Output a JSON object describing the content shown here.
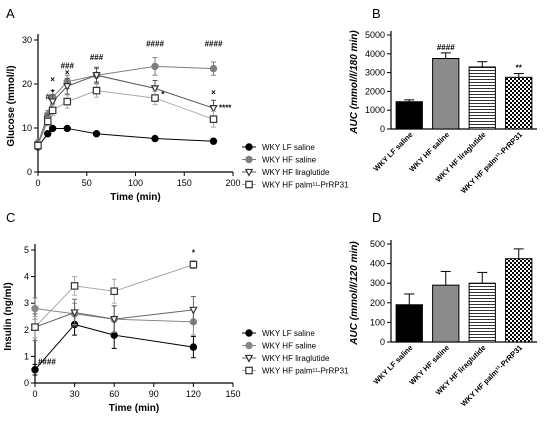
{
  "chart_data": [
    {
      "panel": "A",
      "type": "line",
      "xlabel": "Time (min)",
      "ylabel": "Glucose (mmol/l)",
      "xlim": [
        0,
        200
      ],
      "ylim": [
        0,
        30
      ],
      "xticks": [
        0,
        50,
        100,
        150,
        200
      ],
      "yticks": [
        0,
        10,
        20,
        30
      ],
      "x": [
        0,
        10,
        15,
        30,
        60,
        120,
        180
      ],
      "series": [
        {
          "name": "WKY LF saline",
          "marker": "circle",
          "color": "#000000",
          "values": [
            5.7,
            8.7,
            9.9,
            9.9,
            8.7,
            7.6,
            7.0
          ],
          "err": [
            0.6,
            0.4,
            0.4,
            0.4,
            0.3,
            0.5,
            0.3
          ]
        },
        {
          "name": "WKY HF saline",
          "marker": "circle",
          "color": "#7f7f7f",
          "values": [
            6.5,
            13.0,
            17.0,
            20.5,
            22.0,
            24.0,
            23.5
          ],
          "err": [
            0.8,
            1.0,
            1.5,
            1.5,
            1.5,
            2.0,
            1.5
          ]
        },
        {
          "name": "WKY HF liraglutide",
          "marker": "triangle",
          "color": "#555555",
          "values": [
            6.2,
            12.0,
            16.0,
            19.5,
            22.0,
            19.0,
            14.5
          ],
          "err": [
            0.8,
            1.0,
            1.5,
            1.8,
            1.8,
            1.8,
            1.8
          ]
        },
        {
          "name": "WKY HF palm¹¹-PrRP31",
          "marker": "square",
          "color": "#aaaaaa",
          "values": [
            6.0,
            11.5,
            14.0,
            16.0,
            18.5,
            16.8,
            12.0
          ],
          "err": [
            0.8,
            1.0,
            1.2,
            1.5,
            1.5,
            1.5,
            1.8
          ]
        }
      ],
      "annotations": [
        {
          "text": "#",
          "x": 10,
          "y": 16.5
        },
        {
          "text": "*",
          "x": 15,
          "y": 17.5
        },
        {
          "text": "×",
          "x": 15,
          "y": 20.5
        },
        {
          "text": "×",
          "x": 30,
          "y": 22.0
        },
        {
          "text": "###",
          "x": 30,
          "y": 23.5
        },
        {
          "text": "###",
          "x": 60,
          "y": 25.5
        },
        {
          "text": "####",
          "x": 120,
          "y": 28.5
        },
        {
          "text": "*",
          "x": 128,
          "y": 17.0
        },
        {
          "text": "####",
          "x": 180,
          "y": 28.5
        },
        {
          "text": "×",
          "x": 180,
          "y": 17.5
        },
        {
          "text": "****",
          "x": 192,
          "y": 14.0
        }
      ]
    },
    {
      "panel": "B",
      "type": "bar",
      "ylabel": "AUC (mmol/l/180 min)",
      "ylim": [
        0,
        5000
      ],
      "yticks": [
        0,
        1000,
        2000,
        3000,
        4000,
        5000
      ],
      "categories": [
        "WKY LF saline",
        "WKY HF saline",
        "WKY HF liraglutide",
        "WKY HF palm¹¹-PrRP31"
      ],
      "values": [
        1450,
        3750,
        3300,
        2750
      ],
      "err": [
        100,
        300,
        280,
        200
      ],
      "annotations": [
        "",
        "####",
        "",
        "**"
      ]
    },
    {
      "panel": "C",
      "type": "line",
      "xlabel": "Time (min)",
      "ylabel": "Insulin (ng/ml)",
      "xlim": [
        0,
        150
      ],
      "ylim": [
        0,
        5
      ],
      "xticks": [
        0,
        30,
        60,
        90,
        120,
        150
      ],
      "yticks": [
        0,
        1,
        2,
        3,
        4,
        5
      ],
      "x": [
        0,
        30,
        60,
        120
      ],
      "series": [
        {
          "name": "WKY LF saline",
          "marker": "circle",
          "color": "#000000",
          "values": [
            0.5,
            2.2,
            1.8,
            1.35
          ],
          "err": [
            0.2,
            0.4,
            0.5,
            0.4
          ]
        },
        {
          "name": "WKY HF saline",
          "marker": "circle",
          "color": "#888888",
          "values": [
            2.8,
            2.6,
            2.4,
            2.3
          ],
          "err": [
            0.4,
            0.4,
            0.5,
            0.5
          ]
        },
        {
          "name": "WKY HF liraglutide",
          "marker": "triangle",
          "color": "#666666",
          "values": [
            2.1,
            2.65,
            2.4,
            2.75
          ],
          "err": [
            0.5,
            0.5,
            0.5,
            0.5
          ]
        },
        {
          "name": "WKY HF palm¹¹-PrRP31",
          "marker": "square",
          "color": "#aaaaaa",
          "values": [
            2.1,
            3.65,
            3.45,
            4.45
          ],
          "err": [
            0.4,
            0.35,
            0.45,
            0.15
          ]
        }
      ],
      "annotations": [
        {
          "text": "*",
          "x": 120,
          "y": 4.8
        },
        {
          "text": "####",
          "x": 9,
          "y": 0.7
        }
      ]
    },
    {
      "panel": "D",
      "type": "bar",
      "ylabel": "AUC (mmol/l/120 min)",
      "ylim": [
        0,
        500
      ],
      "yticks": [
        0,
        100,
        200,
        300,
        400,
        500
      ],
      "categories": [
        "WKY LF saline",
        "WKY HF saline",
        "WKY HF liraglutide",
        "WKY HF palm¹¹-PrRP31"
      ],
      "values": [
        190,
        290,
        300,
        425
      ],
      "err": [
        55,
        70,
        55,
        50
      ],
      "annotations": [
        "",
        "",
        "",
        ""
      ]
    }
  ]
}
